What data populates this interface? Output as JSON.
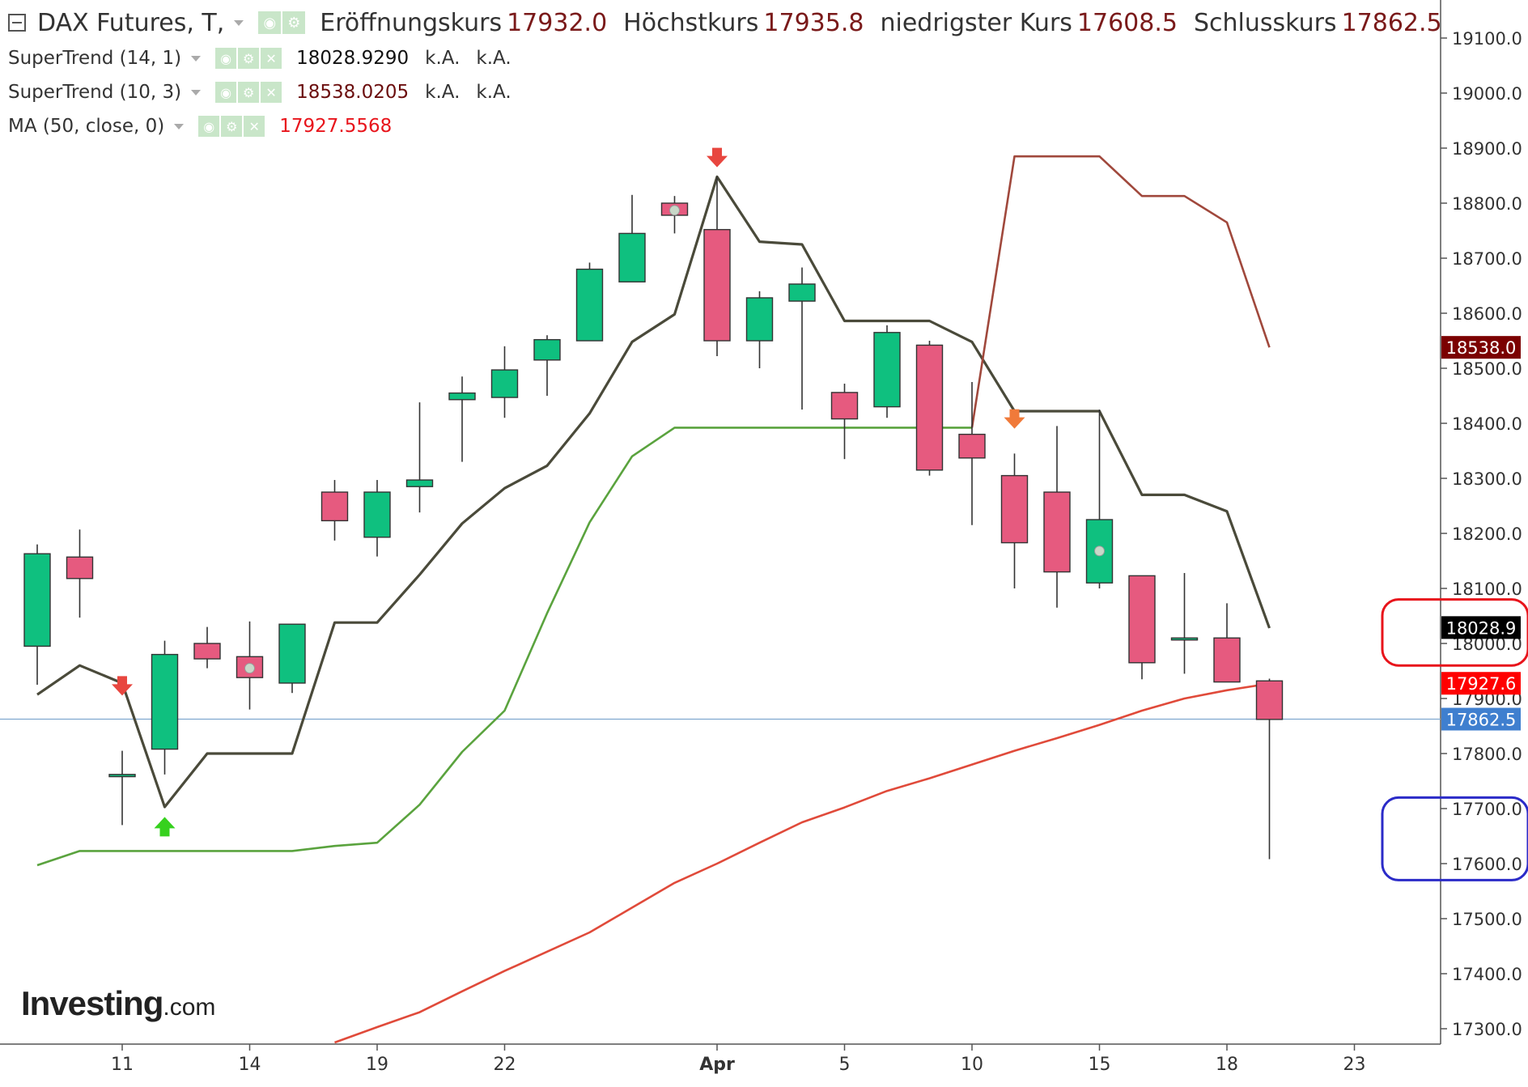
{
  "legend": {
    "symbol": "DAX Futures, T,",
    "open_label": "Eröffnungskurs",
    "open_value": "17932.0",
    "high_label": "Höchstkurs",
    "high_value": "17935.8",
    "low_label": "niedrigster Kurs",
    "low_value": "17608.5",
    "close_label": "Schlusskurs",
    "close_value": "17862.5",
    "indicators": [
      {
        "name": "SuperTrend (14, 1)",
        "value": "18028.9290",
        "na1": "k.A.",
        "na2": "k.A."
      },
      {
        "name": "SuperTrend (10, 3)",
        "value": "18538.0205",
        "na1": "k.A.",
        "na2": "k.A."
      },
      {
        "name": "MA (50, close, 0)",
        "value": "17927.5568"
      }
    ]
  },
  "logo": {
    "main": "Investing",
    "suffix": ".com"
  },
  "colors": {
    "up": "#0fc07f",
    "down": "#e65a7f",
    "candle_border": "#333333",
    "supertrend_14": "#4a4a3a",
    "supertrend_10_up": "#5aa33e",
    "supertrend_10_down": "#a0483c",
    "ma": "#e04a3a",
    "price_line": "#7fa8cf",
    "tag_supertrend_10": "#7b0000",
    "tag_supertrend_14": "#000000",
    "tag_ma": "#ff0000",
    "tag_close": "#3f7fcf",
    "circle_red": "#e8141b",
    "circle_blue": "#2b2bc8",
    "arrow_down": "#e8463f",
    "arrow_down_orange": "#f07a3a",
    "arrow_up": "#36d11e"
  },
  "chart_data": {
    "type": "candlestick",
    "title": "DAX Futures, T,",
    "ylim": [
      17270,
      19150
    ],
    "y_ticks": [
      "17300.0",
      "17400.0",
      "17500.0",
      "17600.0",
      "17700.0",
      "17800.0",
      "17900.0",
      "18000.0",
      "18100.0",
      "18200.0",
      "18300.0",
      "18400.0",
      "18500.0",
      "18600.0",
      "18700.0",
      "18800.0",
      "18900.0",
      "19000.0",
      "19100.0"
    ],
    "x_ticks": [
      {
        "label": "11",
        "t": 6,
        "bold": false
      },
      {
        "label": "14",
        "t": 9,
        "bold": false
      },
      {
        "label": "19",
        "t": 12,
        "bold": false
      },
      {
        "label": "22",
        "t": 15,
        "bold": false
      },
      {
        "label": "Apr",
        "t": 20,
        "bold": true
      },
      {
        "label": "5",
        "t": 23,
        "bold": false
      },
      {
        "label": "10",
        "t": 26,
        "bold": false
      },
      {
        "label": "15",
        "t": 29,
        "bold": false
      },
      {
        "label": "18",
        "t": 32,
        "bold": false
      },
      {
        "label": "23",
        "t": 35,
        "bold": false
      }
    ],
    "candles": [
      {
        "t": 4,
        "o": 17995,
        "h": 18180,
        "l": 17925,
        "c": 18163
      },
      {
        "t": 5,
        "o": 18157,
        "h": 18207,
        "l": 18047,
        "c": 18118
      },
      {
        "t": 6,
        "o": 17758,
        "h": 17805,
        "l": 17670,
        "c": 17762
      },
      {
        "t": 7,
        "o": 17808,
        "h": 18005,
        "l": 17762,
        "c": 17980
      },
      {
        "t": 8,
        "o": 18000,
        "h": 18030,
        "l": 17955,
        "c": 17972
      },
      {
        "t": 9,
        "o": 17976,
        "h": 18040,
        "l": 17880,
        "c": 17938
      },
      {
        "t": 10,
        "o": 17928,
        "h": 18035,
        "l": 17910,
        "c": 18035
      },
      {
        "t": 11,
        "o": 18275,
        "h": 18297,
        "l": 18187,
        "c": 18223
      },
      {
        "t": 12,
        "o": 18193,
        "h": 18297,
        "l": 18158,
        "c": 18275
      },
      {
        "t": 13,
        "o": 18285,
        "h": 18438,
        "l": 18238,
        "c": 18297
      },
      {
        "t": 14,
        "o": 18443,
        "h": 18485,
        "l": 18330,
        "c": 18455
      },
      {
        "t": 15,
        "o": 18447,
        "h": 18540,
        "l": 18410,
        "c": 18497
      },
      {
        "t": 16,
        "o": 18515,
        "h": 18560,
        "l": 18450,
        "c": 18552
      },
      {
        "t": 17,
        "o": 18550,
        "h": 18692,
        "l": 18550,
        "c": 18680
      },
      {
        "t": 18,
        "o": 18657,
        "h": 18815,
        "l": 18657,
        "c": 18745
      },
      {
        "t": 19,
        "o": 18800,
        "h": 18813,
        "l": 18745,
        "c": 18778
      },
      {
        "t": 20,
        "o": 18752,
        "h": 18848,
        "l": 18522,
        "c": 18550
      },
      {
        "t": 21,
        "o": 18550,
        "h": 18640,
        "l": 18500,
        "c": 18628
      },
      {
        "t": 22,
        "o": 18622,
        "h": 18683,
        "l": 18425,
        "c": 18653
      },
      {
        "t": 23,
        "o": 18456,
        "h": 18472,
        "l": 18335,
        "c": 18408
      },
      {
        "t": 24,
        "o": 18430,
        "h": 18578,
        "l": 18410,
        "c": 18565
      },
      {
        "t": 25,
        "o": 18542,
        "h": 18550,
        "l": 18305,
        "c": 18315
      },
      {
        "t": 26,
        "o": 18380,
        "h": 18475,
        "l": 18215,
        "c": 18337
      },
      {
        "t": 27,
        "o": 18305,
        "h": 18345,
        "l": 18100,
        "c": 18183
      },
      {
        "t": 28,
        "o": 18275,
        "h": 18395,
        "l": 18065,
        "c": 18130
      },
      {
        "t": 29,
        "o": 18110,
        "h": 18425,
        "l": 18100,
        "c": 18225
      },
      {
        "t": 30,
        "o": 18123,
        "h": 18123,
        "l": 17935,
        "c": 17965
      },
      {
        "t": 31,
        "o": 18010,
        "h": 18128,
        "l": 17945,
        "c": 18010
      },
      {
        "t": 32,
        "o": 18010,
        "h": 18073,
        "l": 17930,
        "c": 17930
      },
      {
        "t": 33,
        "o": 17932,
        "h": 17936,
        "l": 17608,
        "c": 17862
      }
    ],
    "circle_markers": [
      {
        "t": 9,
        "v": 17955
      },
      {
        "t": 19,
        "v": 18787
      },
      {
        "t": 29,
        "v": 18168
      }
    ],
    "series": [
      {
        "name": "SuperTrend (14, 1)",
        "points": [
          [
            4,
            17907
          ],
          [
            5,
            17960
          ],
          [
            6,
            17928
          ],
          [
            7,
            17703
          ],
          [
            8,
            17800
          ],
          [
            9,
            17800
          ],
          [
            10,
            17800
          ],
          [
            11,
            18038
          ],
          [
            12,
            18038
          ],
          [
            13,
            18125
          ],
          [
            14,
            18218
          ],
          [
            15,
            18282
          ],
          [
            16,
            18323
          ],
          [
            17,
            18418
          ],
          [
            18,
            18548
          ],
          [
            19,
            18598
          ],
          [
            20,
            18848
          ],
          [
            21,
            18730
          ],
          [
            22,
            18725
          ],
          [
            23,
            18586
          ],
          [
            24,
            18586
          ],
          [
            25,
            18586
          ],
          [
            26,
            18548
          ],
          [
            27,
            18422
          ],
          [
            28,
            18422
          ],
          [
            29,
            18422
          ],
          [
            30,
            18270
          ],
          [
            31,
            18270
          ],
          [
            32,
            18240
          ],
          [
            33,
            18028
          ]
        ]
      },
      {
        "name": "SuperTrend (10, 3)",
        "points": [
          [
            4,
            17597
          ],
          [
            5,
            17623
          ],
          [
            6,
            17623
          ],
          [
            7,
            17623
          ],
          [
            8,
            17623
          ],
          [
            9,
            17623
          ],
          [
            10,
            17623
          ],
          [
            11,
            17632
          ],
          [
            12,
            17638
          ],
          [
            13,
            17707
          ],
          [
            14,
            17803
          ],
          [
            15,
            17878
          ],
          [
            16,
            18055
          ],
          [
            17,
            18220
          ],
          [
            18,
            18340
          ],
          [
            19,
            18392
          ],
          [
            20,
            18392
          ],
          [
            21,
            18392
          ],
          [
            22,
            18392
          ],
          [
            23,
            18392
          ],
          [
            24,
            18392
          ],
          [
            25,
            18392
          ],
          [
            26,
            18392
          ]
        ]
      },
      {
        "name": "SuperTrend (10, 3)",
        "points": [
          [
            26,
            18392
          ],
          [
            27,
            18885
          ],
          [
            28,
            18885
          ],
          [
            29,
            18885
          ],
          [
            30,
            18813
          ],
          [
            31,
            18813
          ],
          [
            32,
            18765
          ],
          [
            33,
            18538
          ]
        ]
      },
      {
        "name": "MA (50, close, 0)",
        "points": [
          [
            11,
            17275
          ],
          [
            12,
            17303
          ],
          [
            13,
            17330
          ],
          [
            14,
            17368
          ],
          [
            15,
            17405
          ],
          [
            16,
            17440
          ],
          [
            17,
            17475
          ],
          [
            18,
            17520
          ],
          [
            19,
            17565
          ],
          [
            20,
            17600
          ],
          [
            21,
            17638
          ],
          [
            22,
            17675
          ],
          [
            23,
            17702
          ],
          [
            24,
            17732
          ],
          [
            25,
            17755
          ],
          [
            26,
            17780
          ],
          [
            27,
            17805
          ],
          [
            28,
            17828
          ],
          [
            29,
            17852
          ],
          [
            30,
            17878
          ],
          [
            31,
            17900
          ],
          [
            32,
            17915
          ],
          [
            33,
            17927
          ]
        ]
      }
    ],
    "signal_arrows": [
      {
        "t": 6,
        "v": 17920,
        "dir": "down",
        "color": "arrow_down"
      },
      {
        "t": 7,
        "v": 17670,
        "dir": "up",
        "color": "arrow_up"
      },
      {
        "t": 20,
        "v": 18880,
        "dir": "down",
        "color": "arrow_down"
      },
      {
        "t": 27,
        "v": 18405,
        "dir": "down",
        "color": "arrow_down_orange"
      }
    ],
    "price_line": 17862.5,
    "tags": [
      {
        "label": "18538.0",
        "v": 18538,
        "color": "tag_supertrend_10"
      },
      {
        "label": "18028.9",
        "v": 18028.9,
        "color": "tag_supertrend_14"
      },
      {
        "label": "17927.6",
        "v": 17927.6,
        "color": "tag_ma"
      },
      {
        "label": "17862.5",
        "v": 17862.5,
        "color": "tag_close"
      }
    ],
    "highlight_boxes": [
      {
        "v_top": 18080,
        "v_bottom": 17960,
        "color": "circle_red"
      },
      {
        "v_top": 17720,
        "v_bottom": 17570,
        "color": "circle_blue"
      }
    ]
  }
}
